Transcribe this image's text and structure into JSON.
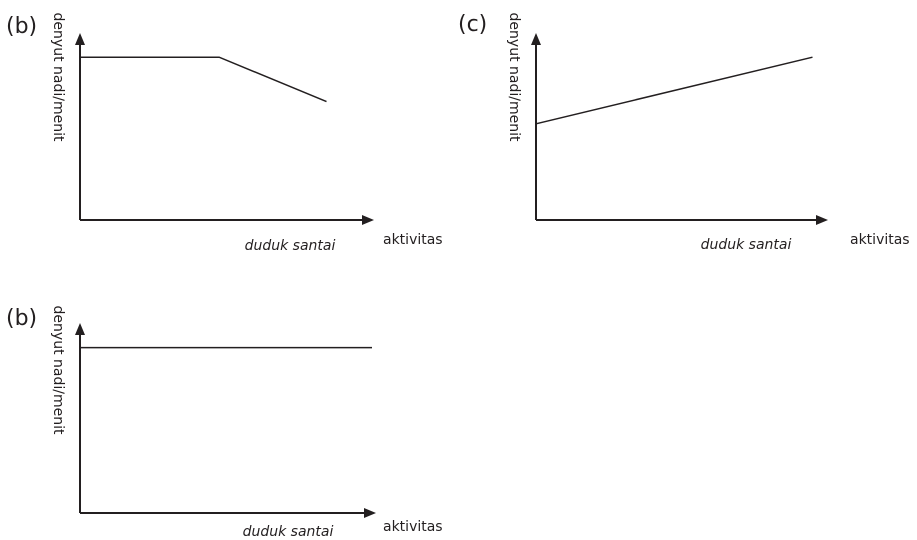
{
  "chart_data": [
    {
      "type": "line",
      "panel_label": "(b)",
      "ylabel": "denyut nadi/menit",
      "xlabel": "aktivitas",
      "categories": [
        "duduk santai"
      ],
      "x": [
        0,
        0.48,
        0.85
      ],
      "series": [
        {
          "values": [
            0.88,
            0.88,
            0.64
          ]
        }
      ],
      "xlim": [
        0,
        1
      ],
      "ylim": [
        0,
        1
      ],
      "grid": false
    },
    {
      "type": "line",
      "panel_label": "(c)",
      "ylabel": "denyut nadi/menit",
      "xlabel": "aktivitas",
      "categories": [
        "duduk santai"
      ],
      "x": [
        0,
        0.96
      ],
      "series": [
        {
          "values": [
            0.52,
            0.88
          ]
        }
      ],
      "xlim": [
        0,
        1
      ],
      "ylim": [
        0,
        1
      ],
      "grid": false
    },
    {
      "type": "line",
      "panel_label": "(b)",
      "ylabel": "denyut nadi/menit",
      "xlabel": "aktivitas",
      "categories": [
        "duduk santai"
      ],
      "x": [
        0,
        1
      ],
      "series": [
        {
          "values": [
            0.88,
            0.88
          ]
        }
      ],
      "xlim": [
        0,
        1
      ],
      "ylim": [
        0,
        1
      ],
      "grid": false
    }
  ]
}
